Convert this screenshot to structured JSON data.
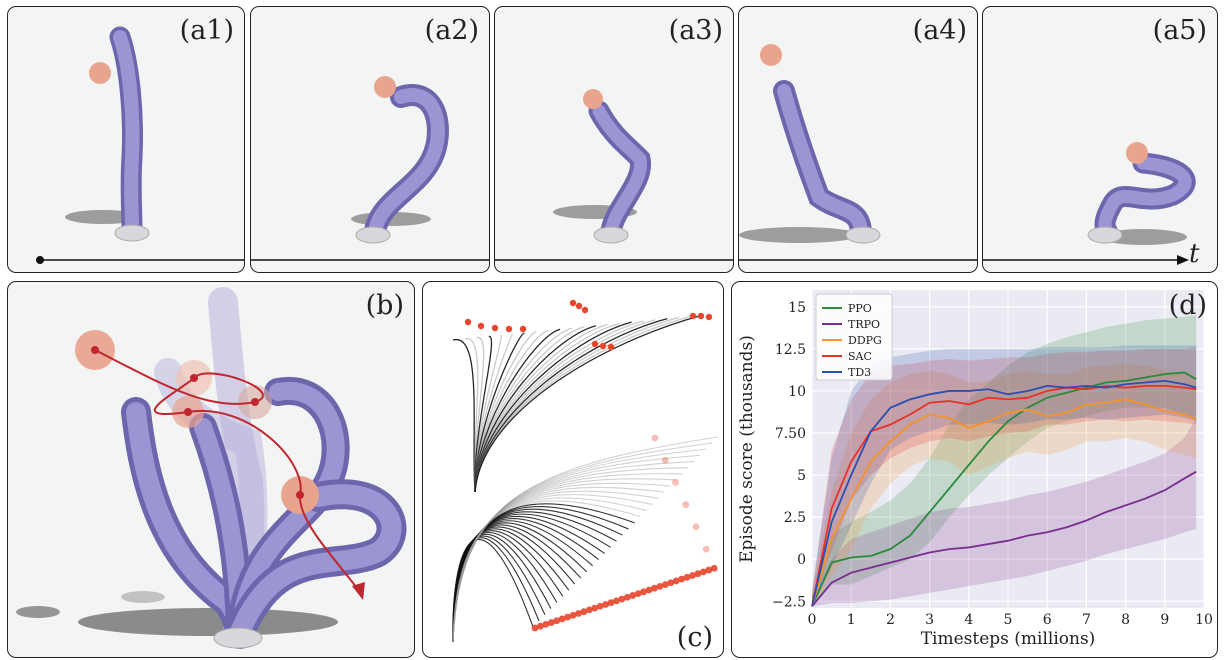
{
  "panels": {
    "a1": "(a1)",
    "a2": "(a2)",
    "a3": "(a3)",
    "a4": "(a4)",
    "a5": "(a5)",
    "b": "(b)",
    "c": "(c)",
    "d": "(d)"
  },
  "timeline": {
    "label": "t"
  },
  "colors": {
    "rod": "#8e86c9",
    "rod_dark": "#6d66ad",
    "ball": "#e9a48e",
    "base": "#d8d8dc",
    "trajectory": "#c0262d",
    "marker": "#e8452c",
    "panel_bg": "#f3f4f4"
  },
  "chart_data": {
    "type": "line",
    "xlabel": "Timesteps (millions)",
    "ylabel": "Episode score (thousands)",
    "xlim": [
      0,
      10
    ],
    "ylim": [
      -2.9,
      16
    ],
    "xticks": [
      "0",
      "1",
      "2",
      "3",
      "4",
      "5",
      "6",
      "7",
      "8",
      "9",
      "10"
    ],
    "yticks": [
      "−2.5",
      "0",
      "2.5",
      "5",
      "7.50",
      "10",
      "12.5",
      "15"
    ],
    "grid": true,
    "legend_position": "top-left",
    "x": [
      0,
      0.5,
      1,
      1.5,
      2,
      2.5,
      3,
      3.5,
      4,
      4.5,
      5,
      5.5,
      6,
      6.5,
      7,
      7.5,
      8,
      8.5,
      9,
      9.5,
      9.8
    ],
    "series": [
      {
        "name": "PPO",
        "color": "#2a8a3c",
        "values": [
          -2.8,
          -0.2,
          0.1,
          0.2,
          0.6,
          1.4,
          2.8,
          4.2,
          5.6,
          7.0,
          8.2,
          9.0,
          9.6,
          9.9,
          10.2,
          10.5,
          10.6,
          10.8,
          11.0,
          11.1,
          10.7
        ],
        "lower": [
          -2.8,
          -1.5,
          -1.5,
          -1.0,
          -0.5,
          0.0,
          1.0,
          2.5,
          3.8,
          5.0,
          6.0,
          7.0,
          7.8,
          8.2,
          8.5,
          8.8,
          9.0,
          9.0,
          9.0,
          8.6,
          8.4
        ],
        "upper": [
          -2.4,
          1.5,
          2.2,
          2.8,
          3.5,
          4.5,
          6.0,
          8.0,
          9.5,
          10.5,
          11.5,
          12.3,
          12.8,
          13.2,
          13.5,
          13.8,
          14.0,
          14.2,
          14.3,
          14.4,
          14.5
        ]
      },
      {
        "name": "TRPO",
        "color": "#7b2d8e",
        "values": [
          -2.8,
          -1.4,
          -0.8,
          -0.5,
          -0.2,
          0.1,
          0.4,
          0.6,
          0.7,
          0.9,
          1.1,
          1.4,
          1.6,
          1.9,
          2.3,
          2.8,
          3.2,
          3.6,
          4.1,
          4.8,
          5.2
        ],
        "lower": [
          -2.8,
          -2.6,
          -2.6,
          -2.5,
          -2.4,
          -2.2,
          -2.0,
          -1.8,
          -1.6,
          -1.4,
          -1.2,
          -1.0,
          -0.7,
          -0.4,
          -0.1,
          0.3,
          0.6,
          0.9,
          1.2,
          1.6,
          1.8
        ],
        "upper": [
          -2.2,
          0.0,
          1.2,
          1.6,
          2.0,
          2.4,
          2.8,
          3.0,
          3.1,
          3.3,
          3.5,
          3.8,
          4.0,
          4.3,
          4.6,
          5.0,
          5.4,
          5.8,
          6.3,
          7.2,
          8.4
        ]
      },
      {
        "name": "DDPG",
        "color": "#f5922a",
        "values": [
          -2.8,
          1.2,
          3.6,
          5.8,
          7.0,
          8.0,
          8.6,
          8.4,
          7.8,
          8.2,
          8.7,
          8.9,
          8.5,
          8.7,
          9.2,
          9.3,
          9.5,
          9.2,
          8.8,
          8.6,
          8.3
        ],
        "lower": [
          -2.8,
          -1.0,
          0.5,
          3.0,
          4.5,
          5.5,
          6.0,
          5.8,
          5.0,
          5.5,
          6.0,
          6.4,
          6.2,
          6.5,
          7.0,
          7.0,
          7.2,
          7.0,
          6.5,
          6.2,
          6.0
        ],
        "upper": [
          -2.0,
          4.0,
          7.5,
          9.5,
          10.5,
          11.0,
          11.2,
          11.0,
          10.5,
          10.6,
          11.0,
          11.2,
          11.0,
          11.0,
          11.4,
          11.5,
          11.6,
          11.5,
          11.2,
          11.0,
          10.8
        ]
      },
      {
        "name": "SAC",
        "color": "#e82f2a",
        "values": [
          -2.8,
          3.0,
          5.8,
          7.6,
          8.0,
          8.6,
          9.3,
          9.4,
          9.2,
          9.6,
          9.5,
          9.6,
          10.0,
          10.2,
          10.1,
          10.3,
          10.2,
          10.3,
          10.3,
          10.2,
          10.1
        ],
        "lower": [
          -2.8,
          0.5,
          3.5,
          5.0,
          6.0,
          6.6,
          7.0,
          7.2,
          7.0,
          7.3,
          7.5,
          7.6,
          8.0,
          8.0,
          8.2,
          8.3,
          8.2,
          8.3,
          8.2,
          8.1,
          8.0
        ],
        "upper": [
          -2.0,
          6.5,
          9.5,
          11.0,
          11.5,
          11.6,
          11.8,
          11.9,
          11.8,
          11.9,
          12.0,
          12.0,
          12.2,
          12.3,
          12.3,
          12.4,
          12.4,
          12.5,
          12.5,
          12.5,
          12.6
        ]
      },
      {
        "name": "TD3",
        "color": "#2a4fb0",
        "values": [
          -2.8,
          2.2,
          5.0,
          7.6,
          9.0,
          9.5,
          9.8,
          10.0,
          10.0,
          10.1,
          9.8,
          10.0,
          10.3,
          10.2,
          10.3,
          10.2,
          10.4,
          10.5,
          10.6,
          10.4,
          10.2
        ],
        "lower": [
          -2.8,
          -0.5,
          2.0,
          4.5,
          6.5,
          7.2,
          7.6,
          8.0,
          8.0,
          8.1,
          8.0,
          8.1,
          8.3,
          8.3,
          8.4,
          8.3,
          8.4,
          8.5,
          8.6,
          8.4,
          8.2
        ],
        "upper": [
          -1.8,
          6.0,
          10.0,
          11.5,
          12.0,
          12.2,
          12.4,
          12.5,
          12.5,
          12.5,
          12.5,
          12.5,
          12.6,
          12.6,
          12.6,
          12.6,
          12.7,
          12.7,
          12.7,
          12.7,
          12.7
        ]
      }
    ]
  }
}
